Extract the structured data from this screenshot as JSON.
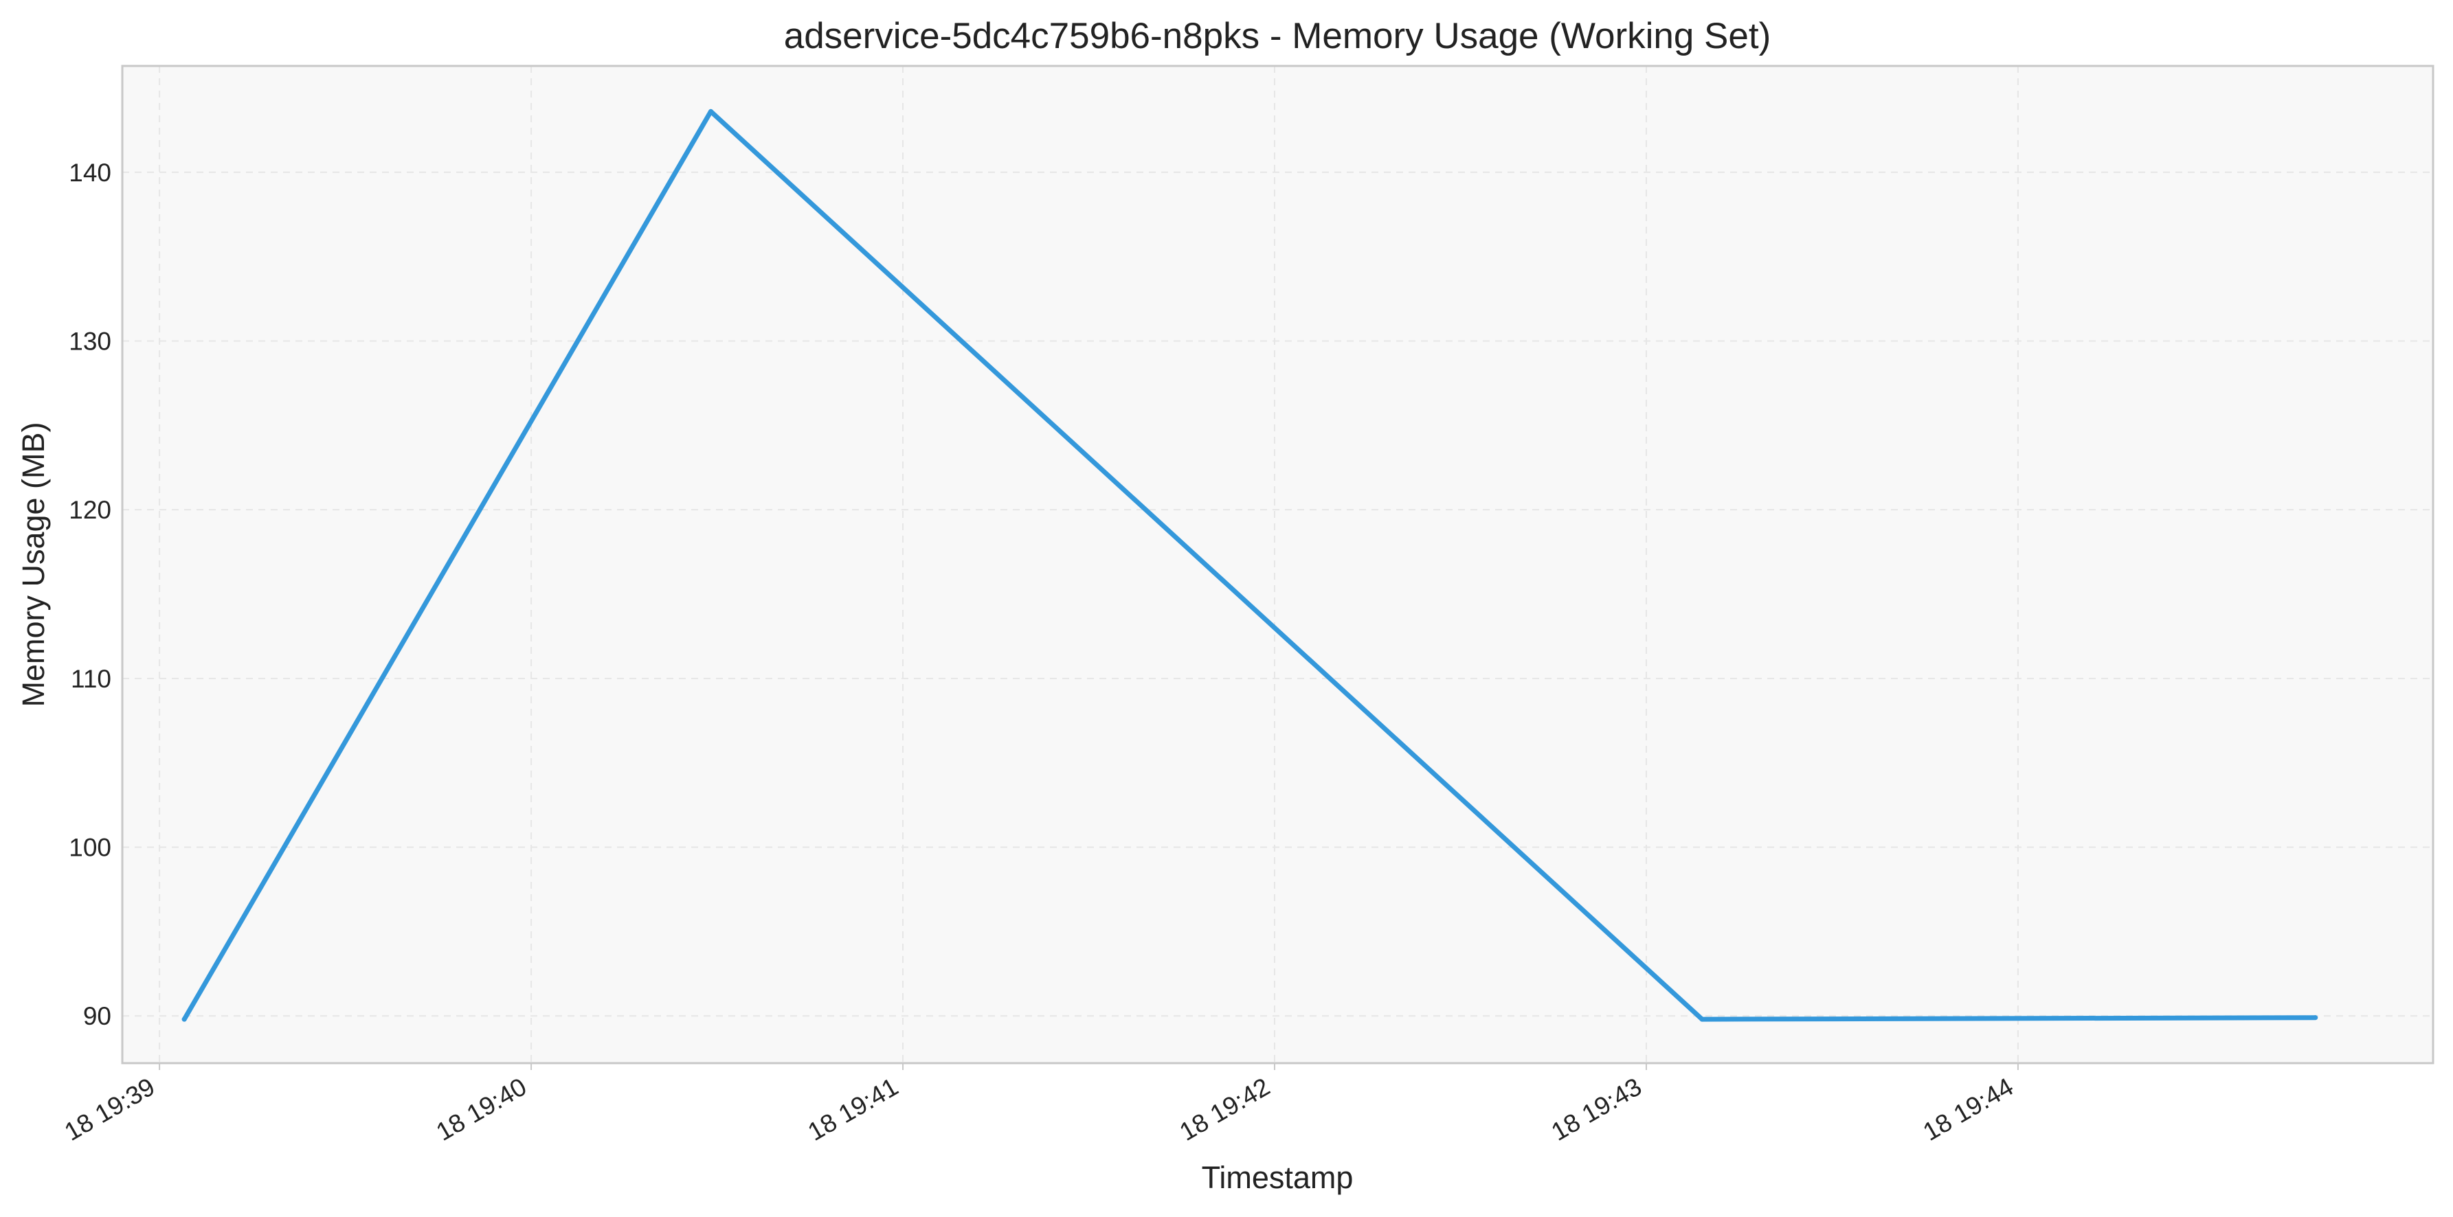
{
  "chart_data": {
    "type": "line",
    "title": "adservice-5dc4c759b6-n8pks - Memory Usage (Working Set)",
    "xlabel": "Timestamp",
    "ylabel": "Memory Usage (MB)",
    "x_ticks": [
      "18 19:39",
      "18 19:40",
      "18 19:41",
      "18 19:42",
      "18 19:43",
      "18 19:44"
    ],
    "y_ticks": [
      90,
      100,
      110,
      120,
      130,
      140
    ],
    "xlim": [
      "18 19:38:54",
      "18 19:45:07"
    ],
    "ylim": [
      87.2,
      146.3
    ],
    "grid": true,
    "series": [
      {
        "x": [
          "18 19:39:04",
          "18 19:40:29",
          "18 19:43:09",
          "18 19:44:48"
        ],
        "values": [
          89.8,
          143.6,
          89.8,
          89.9
        ]
      }
    ],
    "colors": {
      "line": "#3498db",
      "plot_background": "#f8f8f8",
      "grid": "#e6e6e6",
      "frame": "#c8c8c8",
      "text": "#222222"
    }
  }
}
